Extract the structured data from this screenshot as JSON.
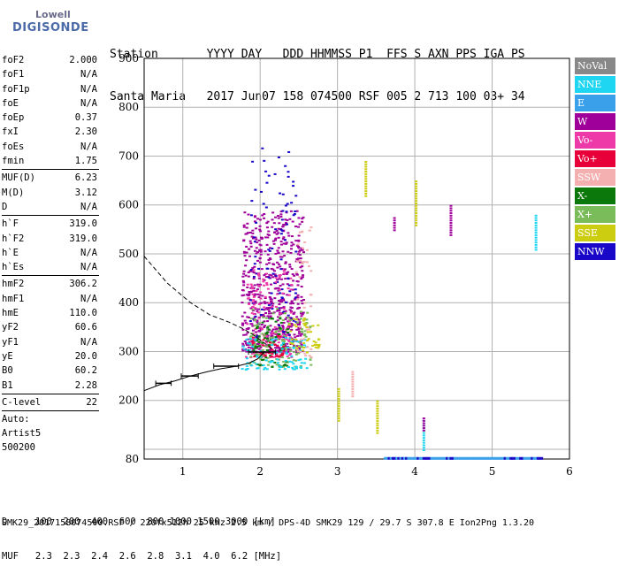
{
  "logo": {
    "line1": "Lowell",
    "line2": "DIGISONDE"
  },
  "header": {
    "row1": "Station       YYYY DAY   DDD HHMMSS P1  FFS S AXN PPS IGA PS",
    "row2": "Santa Maria   2017 Jun07 158 074500 RSF 005 2 713 100 03+ 34"
  },
  "params": {
    "group1": [
      {
        "name": "foF2",
        "value": "2.000"
      },
      {
        "name": "foF1",
        "value": "N/A"
      },
      {
        "name": "foF1p",
        "value": "N/A"
      },
      {
        "name": "foE",
        "value": "N/A"
      },
      {
        "name": "foEp",
        "value": "0.37"
      },
      {
        "name": "fxI",
        "value": "2.30"
      },
      {
        "name": "foEs",
        "value": "N/A"
      },
      {
        "name": "fmin",
        "value": "1.75"
      }
    ],
    "group2": [
      {
        "name": "MUF(D)",
        "value": "6.23"
      },
      {
        "name": "M(D)",
        "value": "3.12"
      },
      {
        "name": "D",
        "value": "N/A"
      }
    ],
    "group3": [
      {
        "name": "h`F",
        "value": "319.0"
      },
      {
        "name": "h`F2",
        "value": "319.0"
      },
      {
        "name": "h`E",
        "value": "N/A"
      },
      {
        "name": "h`Es",
        "value": "N/A"
      }
    ],
    "group4": [
      {
        "name": "hmF2",
        "value": "306.2"
      },
      {
        "name": "hmF1",
        "value": "N/A"
      },
      {
        "name": "hmE",
        "value": "110.0"
      },
      {
        "name": "yF2",
        "value": "60.6"
      },
      {
        "name": "yF1",
        "value": "N/A"
      },
      {
        "name": "yE",
        "value": "20.0"
      },
      {
        "name": "B0",
        "value": "60.2"
      },
      {
        "name": "B1",
        "value": "2.28"
      }
    ],
    "group5": [
      {
        "name": "C-level",
        "value": "22"
      }
    ],
    "auto_text": "Auto:\nArtist5\n500200"
  },
  "legend": [
    {
      "label": "NoVal",
      "color": "#888888"
    },
    {
      "label": "NNE",
      "color": "#1ed6f2"
    },
    {
      "label": "E",
      "color": "#3aa0ea"
    },
    {
      "label": "W",
      "color": "#a0009a"
    },
    {
      "label": "Vo-",
      "color": "#ee3aa8"
    },
    {
      "label": "Vo+",
      "color": "#e8003a"
    },
    {
      "label": "SSW",
      "color": "#f4b0b0"
    },
    {
      "label": "X-",
      "color": "#0a780a"
    },
    {
      "label": "X+",
      "color": "#7abc5a"
    },
    {
      "label": "SSE",
      "color": "#cccc10"
    },
    {
      "label": "NNW",
      "color": "#1a08c8"
    }
  ],
  "mufrow": {
    "d_line": "D     100  200  400  600  800 1000 1500 3000 [km]",
    "muf_line": "MUF   2.3  2.3  2.4  2.6  2.8  3.1  4.0  6.2 [MHz]"
  },
  "footer": "SMK29_2017158074500.RSF / 220fx512h 25 kHz 2.5 km / DPS-4D SMK29 129 / 29.7 S 307.8 E Ion2Png 1.3.20",
  "chart_data": {
    "type": "scatter",
    "xlim": [
      0.5,
      6
    ],
    "ylim": [
      80,
      900
    ],
    "xticks": [
      1,
      2,
      3,
      4,
      5,
      6
    ],
    "yticks": [
      100,
      200,
      300,
      400,
      500,
      600,
      700,
      800,
      900
    ],
    "ytick_labels": [
      "",
      "200",
      "300",
      "400",
      "500",
      "600",
      "700",
      "800",
      "900"
    ],
    "grid": true,
    "extra_y_label": "80",
    "clusters": [
      {
        "name": "W",
        "x": [
          1.75,
          2.55
        ],
        "y": [
          300,
          590
        ],
        "n": 620
      },
      {
        "name": "NNW",
        "x": [
          1.85,
          2.45
        ],
        "y": [
          330,
          720
        ],
        "n": 110
      },
      {
        "name": "Vo-",
        "x": [
          1.8,
          2.4
        ],
        "y": [
          290,
          470
        ],
        "n": 140
      },
      {
        "name": "X+",
        "x": [
          1.85,
          2.65
        ],
        "y": [
          270,
          390
        ],
        "n": 130
      },
      {
        "name": "X-",
        "x": [
          1.9,
          2.35
        ],
        "y": [
          270,
          370
        ],
        "n": 60
      },
      {
        "name": "NNE",
        "x": [
          1.75,
          2.6
        ],
        "y": [
          265,
          330
        ],
        "n": 90
      },
      {
        "name": "SSW",
        "x": [
          2.45,
          2.65
        ],
        "y": [
          290,
          560
        ],
        "n": 40
      },
      {
        "name": "SSE",
        "x": [
          2.35,
          2.75
        ],
        "y": [
          300,
          370
        ],
        "n": 40
      },
      {
        "name": "Vo+",
        "x": [
          1.85,
          2.3
        ],
        "y": [
          290,
          340
        ],
        "n": 30
      }
    ],
    "vertical_traces": [
      {
        "name": "SSE",
        "x": 3.35,
        "y": [
          620,
          690
        ]
      },
      {
        "name": "SSE",
        "x": 4.0,
        "y": [
          560,
          650
        ]
      },
      {
        "name": "W",
        "x": 3.72,
        "y": [
          550,
          575
        ]
      },
      {
        "name": "W",
        "x": 4.45,
        "y": [
          540,
          600
        ]
      },
      {
        "name": "NNE",
        "x": 5.55,
        "y": [
          510,
          580
        ]
      },
      {
        "name": "SSE",
        "x": 3.0,
        "y": [
          160,
          225
        ]
      },
      {
        "name": "SSE",
        "x": 3.5,
        "y": [
          135,
          200
        ]
      },
      {
        "name": "SSW",
        "x": 3.18,
        "y": [
          210,
          260
        ]
      },
      {
        "name": "NNE",
        "x": 4.1,
        "y": [
          100,
          160
        ]
      },
      {
        "name": "W",
        "x": 4.1,
        "y": [
          140,
          165
        ]
      }
    ],
    "baseline_band": {
      "x": [
        3.6,
        5.65
      ],
      "y": [
        83,
        85
      ]
    },
    "profile_curve": {
      "x": [
        0.5,
        0.8,
        1.1,
        1.35,
        1.6,
        1.8,
        1.95,
        2.05,
        2.15
      ],
      "y": [
        495,
        440,
        400,
        375,
        360,
        345,
        330,
        318,
        306
      ]
    },
    "trace_curve": {
      "x": [
        0.5,
        0.7,
        0.9,
        1.1,
        1.3,
        1.5,
        1.7,
        1.85,
        1.97,
        2.05
      ],
      "y": [
        220,
        232,
        240,
        250,
        258,
        265,
        270,
        276,
        285,
        299
      ]
    },
    "hbars": [
      {
        "x": [
          0.65,
          0.85
        ],
        "y": 235
      },
      {
        "x": [
          0.98,
          1.2
        ],
        "y": 250
      },
      {
        "x": [
          1.4,
          1.72
        ],
        "y": 270
      },
      {
        "x": [
          1.85,
          2.2
        ],
        "y": 299
      }
    ]
  }
}
